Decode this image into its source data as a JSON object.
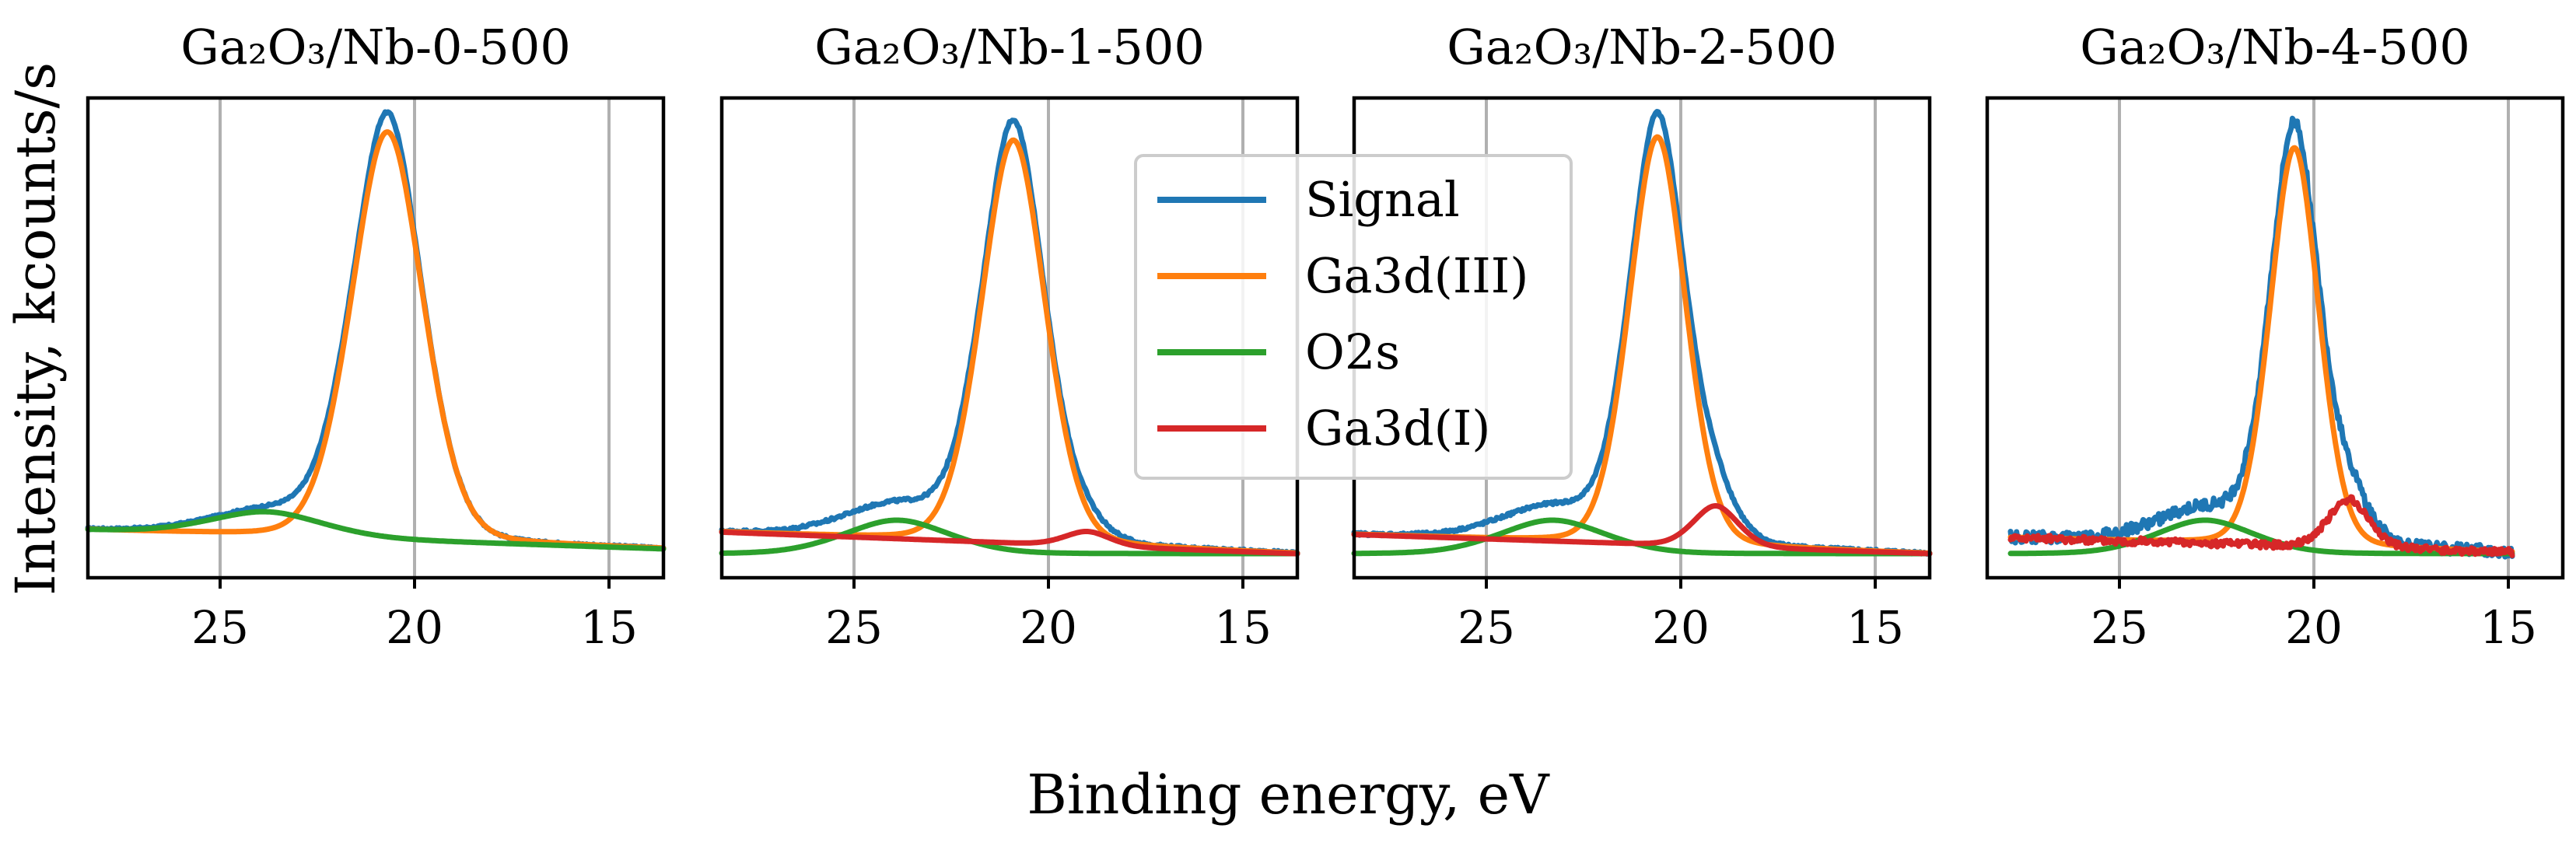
{
  "chart_data": {
    "type": "line",
    "figure": {
      "xlabel": "Binding energy, eV",
      "ylabel": "Intensity, kcounts/s",
      "legend": {
        "location": "center-top",
        "entries": [
          {
            "name": "Signal",
            "color": "#1f77b4"
          },
          {
            "name": "Ga3d(III)",
            "color": "#ff7f0e"
          },
          {
            "name": "O2s",
            "color": "#2ca02c"
          },
          {
            "name": "Ga3d(I)",
            "color": "#d62728"
          }
        ]
      }
    },
    "panels": [
      {
        "title": "Ga₂O₃/Nb-0-500",
        "xlim": [
          28.4,
          13.6
        ],
        "ylim": [
          0,
          1.0
        ],
        "xticks": [
          25,
          20,
          15
        ],
        "xtick_labels": [
          "25",
          "20",
          "15"
        ],
        "grid": true,
        "components": {
          "Ga3d(III)": {
            "center": 20.7,
            "amp": 0.86,
            "sigma": 0.95
          },
          "O2s": {
            "center": 23.8,
            "amp": 0.05,
            "sigma": 1.5
          },
          "Ga3d(I)": null
        },
        "baseline": {
          "high_be": 0.1,
          "low_be": 0.06
        },
        "noise": 0.002
      },
      {
        "title": "Ga₂O₃/Nb-1-500",
        "xlim": [
          28.4,
          13.6
        ],
        "ylim": [
          0,
          1.0
        ],
        "xticks": [
          25,
          20,
          15
        ],
        "xtick_labels": [
          "25",
          "20",
          "15"
        ],
        "grid": true,
        "components": {
          "Ga3d(III)": {
            "center": 20.9,
            "amp": 0.85,
            "sigma": 0.85
          },
          "O2s": {
            "center": 23.9,
            "amp": 0.07,
            "sigma": 1.4
          },
          "Ga3d(I)": {
            "center": 19.0,
            "amp": 0.03,
            "sigma": 0.6
          }
        },
        "baseline": {
          "high_be": 0.095,
          "low_be": 0.05
        },
        "noise": 0.003
      },
      {
        "title": "Ga₂O₃/Nb-2-500",
        "xlim": [
          28.4,
          13.6
        ],
        "ylim": [
          0,
          1.0
        ],
        "xticks": [
          25,
          20,
          15
        ],
        "xtick_labels": [
          "25",
          "20",
          "15"
        ],
        "grid": true,
        "components": {
          "Ga3d(III)": {
            "center": 20.6,
            "amp": 0.86,
            "sigma": 0.75
          },
          "O2s": {
            "center": 23.3,
            "amp": 0.07,
            "sigma": 1.4
          },
          "Ga3d(I)": {
            "center": 19.1,
            "amp": 0.085,
            "sigma": 0.6
          }
        },
        "baseline": {
          "high_be": 0.09,
          "low_be": 0.05
        },
        "noise": 0.003
      },
      {
        "title": "Ga₂O₃/Nb-4-500",
        "xlim": [
          28.4,
          13.6
        ],
        "ylim": [
          0,
          1.0
        ],
        "xticks": [
          25,
          20,
          15
        ],
        "xtick_labels": [
          "25",
          "20",
          "15"
        ],
        "grid": true,
        "components": {
          "Ga3d(III)": {
            "center": 20.5,
            "amp": 0.84,
            "sigma": 0.65
          },
          "O2s": {
            "center": 22.8,
            "amp": 0.07,
            "sigma": 1.3
          },
          "Ga3d(I)": {
            "center": 19.1,
            "amp": 0.1,
            "sigma": 0.55
          }
        },
        "baseline": {
          "high_be": 0.085,
          "low_be": 0.05
        },
        "data_xrange": [
          27.8,
          14.9
        ],
        "noise": 0.012
      }
    ]
  }
}
